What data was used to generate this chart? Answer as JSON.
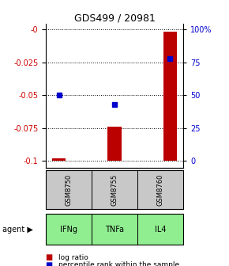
{
  "title": "GDS499 / 20981",
  "samples": [
    "GSM8750",
    "GSM8755",
    "GSM8760"
  ],
  "agents": [
    "IFNg",
    "TNFa",
    "IL4"
  ],
  "log_ratios": [
    -0.098,
    -0.074,
    -0.002
  ],
  "percentile_ranks": [
    50,
    43,
    78
  ],
  "ylim_lo": -0.105,
  "ylim_hi": 0.004,
  "bar_bottom": -0.1,
  "yticks_left": [
    -0.1,
    -0.075,
    -0.05,
    -0.025,
    0
  ],
  "ytick_labels_left": [
    "-0.1",
    "-0.075",
    "-0.05",
    "-0.025",
    "-0"
  ],
  "yticks_right_pct": [
    0,
    25,
    50,
    75,
    100
  ],
  "ytick_labels_right": [
    "0",
    "25",
    "50",
    "75",
    "100%"
  ],
  "bar_color": "#bb0000",
  "dot_color": "#0000cc",
  "bar_width": 0.25,
  "sample_box_color": "#c8c8c8",
  "agent_box_color": "#90ee90",
  "legend_log_label": "log ratio",
  "legend_pct_label": "percentile rank within the sample",
  "agent_label": "agent"
}
